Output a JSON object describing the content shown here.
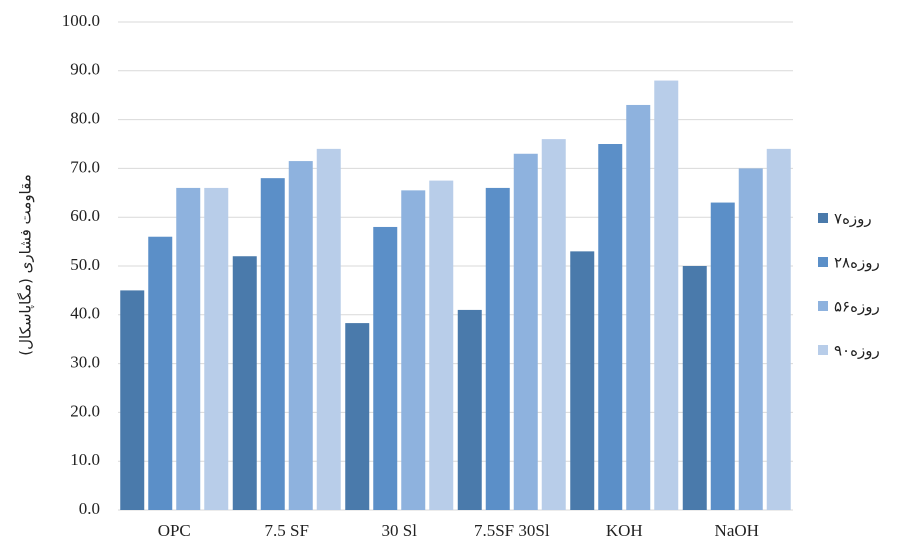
{
  "chart_data": {
    "type": "bar",
    "y_label": "مقاومت فشاری (مگاپاسکال)",
    "categories": [
      "OPC",
      "7.5 SF",
      "30 Sl",
      "7.5SF 30Sl",
      "KOH",
      "NaOH"
    ],
    "series": [
      {
        "name": "۷روزه",
        "color": "#4a7aab",
        "values": [
          45,
          52,
          38.3,
          41,
          53,
          50
        ]
      },
      {
        "name": "۲۸روزه",
        "color": "#5b8fc8",
        "values": [
          56,
          68,
          58,
          66,
          75,
          63
        ]
      },
      {
        "name": "۵۶روزه",
        "color": "#8eb2de",
        "values": [
          66,
          71.5,
          65.5,
          73,
          83,
          70
        ]
      },
      {
        "name": "۹۰روزه",
        "color": "#b8cde9",
        "values": [
          66,
          74,
          67.5,
          76,
          88,
          74
        ]
      }
    ],
    "ylim": [
      0,
      100
    ],
    "yticks": [
      {
        "value": 0,
        "label": "0.0"
      },
      {
        "value": 10,
        "label": "10.0"
      },
      {
        "value": 20,
        "label": "20.0"
      },
      {
        "value": 30,
        "label": "30.0"
      },
      {
        "value": 40,
        "label": "40.0"
      },
      {
        "value": 50,
        "label": "50.0"
      },
      {
        "value": 60,
        "label": "60.0"
      },
      {
        "value": 70,
        "label": "70.0"
      },
      {
        "value": 80,
        "label": "80.0"
      },
      {
        "value": 90,
        "label": "90.0"
      },
      {
        "value": 100,
        "label": "100.0"
      }
    ],
    "grid": true
  }
}
